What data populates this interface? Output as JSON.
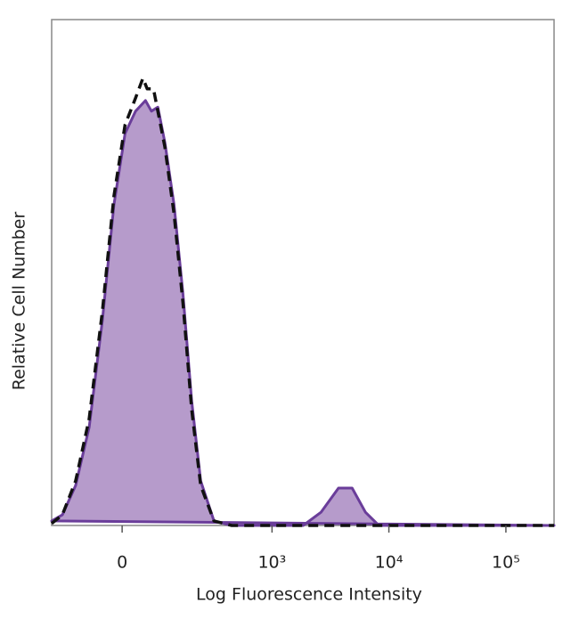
{
  "chart_data": {
    "type": "histogram-overlay",
    "x_label": "Log Fluorescence Intensity",
    "y_label": "Relative Cell Number",
    "xscale": "biexponential",
    "xlim": [
      -197,
      258000
    ],
    "ylim": [
      0,
      100
    ],
    "xticks": [
      0,
      {
        "value": 1000,
        "label": "10³"
      },
      {
        "value": 10000,
        "label": "10⁴"
      },
      {
        "value": 100000,
        "label": "10⁵"
      }
    ],
    "series": [
      {
        "color": "#6a3d9a",
        "fill": "#b69bcb",
        "style": "filled",
        "x": [
          -197,
          -154,
          -110,
          -73,
          -42,
          -17,
          6,
          28,
          50,
          64,
          80,
          99,
          127,
          158,
          193,
          235,
          311,
          448,
          1850,
          2625,
          3710,
          4850,
          6310,
          8210,
          258000
        ],
        "values": [
          0.9,
          2.1,
          7.9,
          19.4,
          40.5,
          63.4,
          77.5,
          81.9,
          84.0,
          81.9,
          82.7,
          75.7,
          63.4,
          45.8,
          24.6,
          8.8,
          0.9,
          0,
          0,
          2.6,
          7.4,
          7.4,
          2.6,
          0,
          0
        ]
      },
      {
        "color": "#111111",
        "style": "dashed",
        "x": [
          -197,
          -154,
          -110,
          -73,
          -42,
          -17,
          6,
          28,
          44,
          54,
          69,
          99,
          127,
          158,
          193,
          235,
          311,
          448,
          258000
        ],
        "values": [
          0.4,
          2.1,
          8.8,
          21.1,
          42.3,
          65.1,
          79.2,
          84.5,
          88.4,
          86.3,
          86.3,
          74.8,
          61.6,
          44.0,
          22.9,
          7.9,
          0.9,
          0,
          0
        ]
      }
    ]
  }
}
